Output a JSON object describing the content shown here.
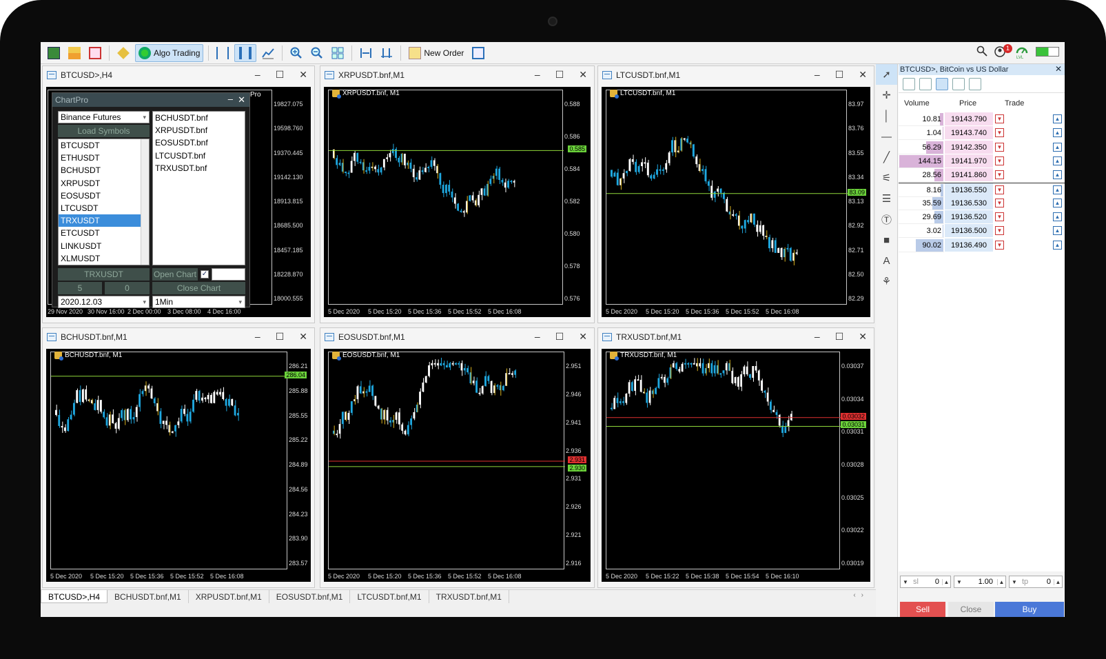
{
  "toolbar": {
    "algo_trading": "Algo Trading",
    "new_order": "New Order",
    "notification_count": "1",
    "lvl_label": "LVL"
  },
  "windows": [
    {
      "title": "BTCUSD>,H4",
      "y_ticks": [
        "19827.075",
        "19598.760",
        "19370.445",
        "19142.130",
        "18913.815",
        "18685.500",
        "18457.185",
        "18228.870",
        "18000.555"
      ],
      "x_ticks": [
        "29 Nov 2020",
        "30 Nov 16:00",
        "2 Dec 00:00",
        "3 Dec 08:00",
        "4 Dec 16:00"
      ],
      "pro_label": "Pro"
    },
    {
      "title": "XRPUSDT.bnf,M1",
      "symbol": "XRPUSDT.bnf, M1",
      "y_ticks": [
        "0.588",
        "0.586",
        "0.584",
        "0.582",
        "0.580",
        "0.578",
        "0.576"
      ],
      "x_ticks": [
        "5 Dec 2020",
        "5 Dec 15:20",
        "5 Dec 15:36",
        "5 Dec 15:52",
        "5 Dec 16:08"
      ],
      "tags": [
        {
          "text": "0.585",
          "color": "#6bd23a"
        }
      ]
    },
    {
      "title": "LTCUSDT.bnf,M1",
      "symbol": "LTCUSDT.bnf, M1",
      "y_ticks": [
        "83.97",
        "83.76",
        "83.55",
        "83.34",
        "83.13",
        "82.92",
        "82.71",
        "82.50",
        "82.29"
      ],
      "x_ticks": [
        "5 Dec 2020",
        "5 Dec 15:20",
        "5 Dec 15:36",
        "5 Dec 15:52",
        "5 Dec 16:08"
      ],
      "tags": [
        {
          "text": "83.09",
          "color": "#6bd23a"
        }
      ]
    },
    {
      "title": "BCHUSDT.bnf,M1",
      "symbol": "BCHUSDT.bnf, M1",
      "y_ticks": [
        "286.21",
        "285.88",
        "285.55",
        "285.22",
        "284.89",
        "284.56",
        "284.23",
        "283.90",
        "283.57"
      ],
      "x_ticks": [
        "5 Dec 2020",
        "5 Dec 15:20",
        "5 Dec 15:36",
        "5 Dec 15:52",
        "5 Dec 16:08"
      ],
      "tags": [
        {
          "text": "286.04",
          "color": "#6bd23a"
        }
      ]
    },
    {
      "title": "EOSUSDT.bnf,M1",
      "symbol": "EOSUSDT.bnf, M1",
      "y_ticks": [
        "2.951",
        "2.946",
        "2.941",
        "2.936",
        "2.931",
        "2.926",
        "2.921",
        "2.916"
      ],
      "x_ticks": [
        "5 Dec 2020",
        "5 Dec 15:20",
        "5 Dec 15:36",
        "5 Dec 15:52",
        "5 Dec 16:08"
      ],
      "tags": [
        {
          "text": "2.931",
          "color": "#e03030"
        },
        {
          "text": "2.930",
          "color": "#6bd23a"
        }
      ]
    },
    {
      "title": "TRXUSDT.bnf,M1",
      "symbol": "TRXUSDT.bnf, M1",
      "y_ticks": [
        "0.03037",
        "0.03034",
        "0.03031",
        "0.03028",
        "0.03025",
        "0.03022",
        "0.03019"
      ],
      "x_ticks": [
        "5 Dec 2020",
        "5 Dec 15:22",
        "5 Dec 15:38",
        "5 Dec 15:54",
        "5 Dec 16:10"
      ],
      "tags": [
        {
          "text": "0.03032",
          "color": "#e03030"
        },
        {
          "text": "0.03031",
          "color": "#6bd23a"
        }
      ]
    }
  ],
  "chartpro": {
    "title": "ChartPro",
    "exchange": "Binance Futures",
    "load_symbols": "Load Symbols",
    "symbols": [
      "BTCUSDT",
      "ETHUSDT",
      "BCHUSDT",
      "XRPUSDT",
      "EOSUSDT",
      "LTCUSDT",
      "TRXUSDT",
      "ETCUSDT",
      "LINKUSDT",
      "XLMUSDT"
    ],
    "selected_symbol": "TRXUSDT",
    "charts": [
      "BCHUSDT.bnf",
      "XRPUSDT.bnf",
      "EOSUSDT.bnf",
      "LTCUSDT.bnf",
      "TRXUSDT.bnf"
    ],
    "symbol_field": "TRXUSDT",
    "open_chart": "Open Chart",
    "field_a": "5",
    "field_b": "0",
    "close_chart": "Close Chart",
    "date": "2020.12.03",
    "timeframe": "1Min"
  },
  "dom": {
    "title": "BTCUSD>, BitCoin vs US Dollar",
    "col_volume": "Volume",
    "col_price": "Price",
    "col_trade": "Trade",
    "rows": [
      {
        "volume": "10.81",
        "price": "19143.790",
        "side": "ask",
        "level": 0.08
      },
      {
        "volume": "1.04",
        "price": "19143.740",
        "side": "ask",
        "level": 0.01
      },
      {
        "volume": "56.29",
        "price": "19142.350",
        "side": "ask",
        "level": 0.39
      },
      {
        "volume": "144.15",
        "price": "19141.970",
        "side": "ask",
        "level": 1.0
      },
      {
        "volume": "28.56",
        "price": "19141.860",
        "side": "ask",
        "level": 0.2
      },
      {
        "volume": "8.16",
        "price": "19136.550",
        "side": "bid",
        "level": 0.06
      },
      {
        "volume": "35.59",
        "price": "19136.530",
        "side": "bid",
        "level": 0.25
      },
      {
        "volume": "29.69",
        "price": "19136.520",
        "side": "bid",
        "level": 0.21
      },
      {
        "volume": "3.02",
        "price": "19136.500",
        "side": "bid",
        "level": 0.02
      },
      {
        "volume": "90.02",
        "price": "19136.490",
        "side": "bid",
        "level": 0.62
      }
    ],
    "sl_label": "sl",
    "sl_value": "0",
    "lot_value": "1.00",
    "tp_label": "tp",
    "tp_value": "0",
    "sell": "Sell",
    "close": "Close",
    "buy": "Buy"
  },
  "tabs": [
    "BTCUSD>,H4",
    "BCHUSDT.bnf,M1",
    "XRPUSDT.bnf,M1",
    "EOSUSDT.bnf,M1",
    "LTCUSDT.bnf,M1",
    "TRXUSDT.bnf,M1"
  ],
  "colors": {
    "candle_blue": "#1fa8e0",
    "candle_white": "#ffffff",
    "candle_yellow": "#d9b21f",
    "bid_line": "#8fd83a",
    "ask_line": "#e03030",
    "ask_bg": "#f7dcef",
    "bid_bg": "#dbe9f8"
  }
}
